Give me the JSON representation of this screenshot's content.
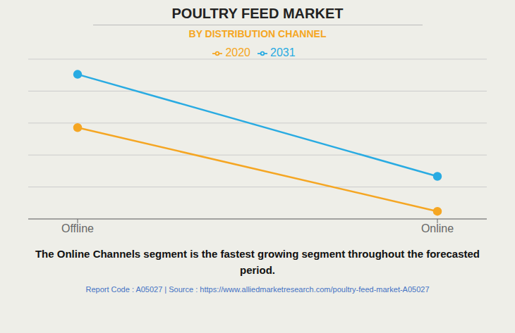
{
  "chart_data": {
    "type": "line",
    "title": "POULTRY FEED MARKET",
    "subtitle": "BY DISTRIBUTION CHANNEL",
    "categories": [
      "Offline",
      "Online"
    ],
    "series": [
      {
        "name": "2020",
        "color": "#F5A623",
        "values": [
          0.6,
          0.05
        ],
        "marker": "circle"
      },
      {
        "name": "2031",
        "color": "#29ABE2",
        "values": [
          0.95,
          0.28
        ],
        "marker": "circle"
      }
    ],
    "ylim": [
      0.0,
      1.05
    ],
    "yticks": [
      0,
      0.21,
      0.42,
      0.63,
      0.84,
      1.05
    ],
    "grid": true,
    "tick_labels": "x",
    "legend": "top",
    "annotations": [
      "The Online Channels segment is the fastest growing segment throughout the forecasted\nperiod.",
      "Report Code : A05027  |  Source : https://www.alliedmarketresearch.com/poultry-feed-market-A05027"
    ]
  }
}
